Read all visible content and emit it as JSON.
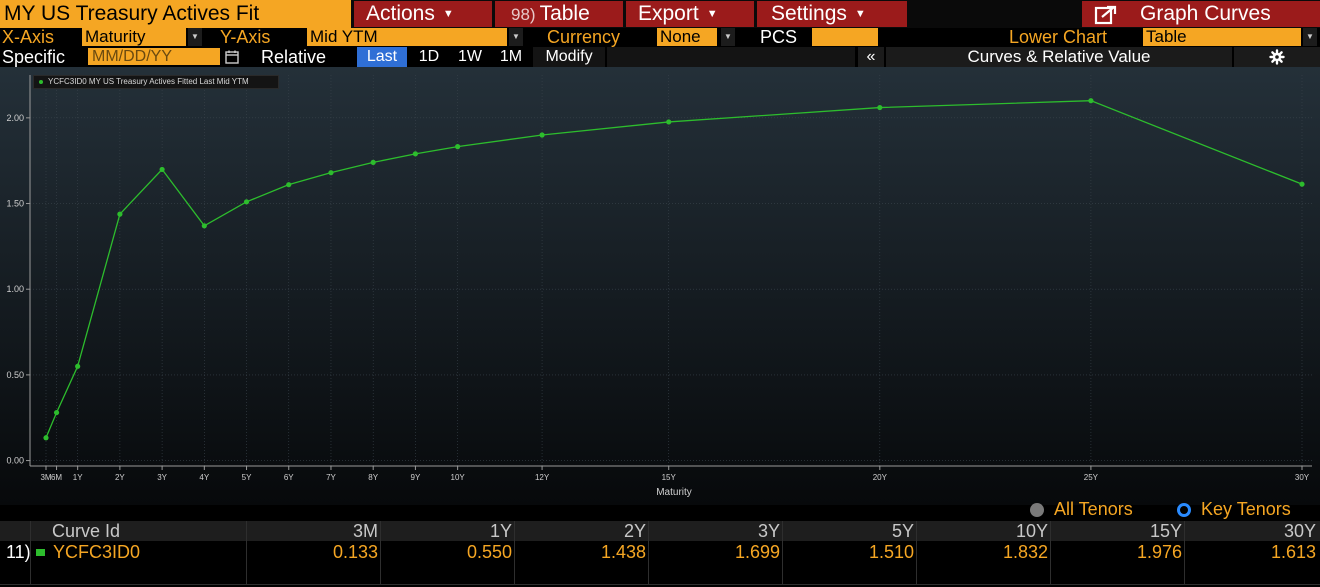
{
  "header": {
    "title": "MY US Treasury Actives Fit",
    "actions_label": "Actions",
    "table_num": "98)",
    "table_label": "Table",
    "export_label": "Export",
    "settings_label": "Settings",
    "graph_curves_label": "Graph Curves"
  },
  "controls": {
    "xaxis_label": "X-Axis",
    "xaxis_value": "Maturity",
    "yaxis_label": "Y-Axis",
    "yaxis_value": "Mid YTM",
    "currency_label": "Currency",
    "currency_value": "None",
    "pcs_label": "PCS",
    "pcs_value": "",
    "lower_chart_label": "Lower Chart",
    "lower_chart_value": "Table"
  },
  "toolbar": {
    "specific_label": "Specific",
    "date_placeholder": "MM/DD/YY",
    "relative_label": "Relative",
    "last_label": "Last",
    "d1_label": "1D",
    "w1_label": "1W",
    "m1_label": "1M",
    "modify_label": "Modify",
    "collapse_label": "«",
    "panel_label": "Curves & Relative Value"
  },
  "chart_data": {
    "type": "line",
    "legend": [
      "YCFC3ID0 MY US Treasury Actives Fitted Last Mid YTM"
    ],
    "xlabel": "Maturity",
    "ylabel": "",
    "x_ticks": [
      "3M",
      "6M",
      "1Y",
      "2Y",
      "3Y",
      "4Y",
      "5Y",
      "6Y",
      "7Y",
      "8Y",
      "9Y",
      "10Y",
      "12Y",
      "15Y",
      "20Y",
      "25Y",
      "30Y"
    ],
    "x_years": [
      0.25,
      0.5,
      1,
      2,
      3,
      4,
      5,
      6,
      7,
      8,
      9,
      10,
      12,
      15,
      20,
      25,
      30
    ],
    "y_ticks": [
      "0.00",
      "0.50",
      "1.00",
      "1.50",
      "2.00"
    ],
    "ylim": [
      -0.02,
      2.25
    ],
    "series": [
      {
        "name": "YCFC3ID0 MY US Treasury Actives Fitted Last Mid YTM",
        "color": "#2dbd2d",
        "x": [
          0.25,
          0.5,
          1,
          2,
          3,
          4,
          5,
          6,
          7,
          8,
          9,
          10,
          12,
          15,
          20,
          25,
          30
        ],
        "y": [
          0.133,
          0.28,
          0.55,
          1.438,
          1.699,
          1.37,
          1.51,
          1.61,
          1.68,
          1.74,
          1.79,
          1.832,
          1.9,
          1.976,
          2.06,
          2.1,
          1.613
        ]
      }
    ]
  },
  "tenors": {
    "all_label": "All Tenors",
    "key_label": "Key Tenors"
  },
  "table": {
    "curve_id_header": "Curve Id",
    "headers": [
      "3M",
      "1Y",
      "2Y",
      "3Y",
      "5Y",
      "10Y",
      "15Y",
      "30Y"
    ],
    "rows": [
      {
        "num": "11)",
        "curve_id": "YCFC3ID0",
        "values": [
          "0.133",
          "0.550",
          "1.438",
          "1.699",
          "1.510",
          "1.832",
          "1.976",
          "1.613"
        ]
      }
    ]
  },
  "colors": {
    "accent_orange": "#f5a623",
    "menu_red": "#9b1b1b",
    "line_green": "#2dbd2d",
    "active_blue": "#2f6fd6"
  }
}
